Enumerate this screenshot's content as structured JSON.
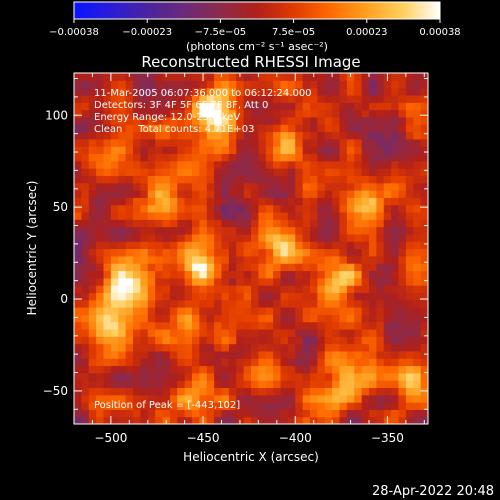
{
  "colorbar": {
    "ticks": [
      "-0.00038",
      "-0.00023",
      "-7.5e-05",
      "7.5e-05",
      "0.00023",
      "0.00038"
    ],
    "unit_label": "(photons cm⁻² s⁻¹ asec⁻²)",
    "range": [
      -0.00038,
      0.00038
    ],
    "stops": [
      "#0a14ff",
      "#2a1cd8",
      "#4a239f",
      "#6b2a7a",
      "#8d2a4a",
      "#b0201a",
      "#e03a00",
      "#ff6a00",
      "#ffa020",
      "#ffd060",
      "#ffffff"
    ]
  },
  "chart_data": {
    "type": "heatmap",
    "title": "Reconstructed RHESSI Image",
    "xlabel": "Heliocentric X (arcsec)",
    "ylabel": "Heliocentric Y (arcsec)",
    "xlim": [
      -520,
      -328
    ],
    "ylim": [
      -68,
      123
    ],
    "x_ticks": [
      -500,
      -450,
      -400,
      -350
    ],
    "x_tick_labels": [
      "-500",
      "-450",
      "-400",
      "-350"
    ],
    "y_ticks": [
      -50,
      0,
      50,
      100
    ],
    "y_tick_labels": [
      "-50",
      "0",
      "50",
      "100"
    ],
    "value_range": [
      -0.00038,
      0.00038
    ],
    "annotations": [
      "11-Mar-2005 06:07:36.000 to 06:12:24.000",
      "Detectors: 3F 4F 5F 6F 7F 8F, Att 0",
      "Energy Range: 12.0-25.0 keV",
      "Clean     Total counts: 4.71E+03"
    ],
    "peak_label": "Position of Peak = [-443,102]",
    "peak_position": [
      -443,
      102
    ],
    "sources": [
      {
        "x": -443,
        "y": 102,
        "intensity": 0.00038
      },
      {
        "x": -452,
        "y": 20,
        "intensity": 0.00034
      },
      {
        "x": -502,
        "y": -12,
        "intensity": 0.0003
      },
      {
        "x": -493,
        "y": 10,
        "intensity": 0.00026
      },
      {
        "x": -410,
        "y": 28,
        "intensity": 0.00024
      },
      {
        "x": -377,
        "y": 10,
        "intensity": 0.00026
      },
      {
        "x": -373,
        "y": -45,
        "intensity": 0.00028
      },
      {
        "x": -340,
        "y": -40,
        "intensity": 0.00022
      },
      {
        "x": -365,
        "y": 53,
        "intensity": 0.00024
      },
      {
        "x": -408,
        "y": 80,
        "intensity": 0.00018
      },
      {
        "x": -505,
        "y": 75,
        "intensity": 0.00016
      },
      {
        "x": -455,
        "y": -15,
        "intensity": 0.00022
      },
      {
        "x": -420,
        "y": -40,
        "intensity": 0.00018
      },
      {
        "x": -470,
        "y": 55,
        "intensity": 0.00015
      },
      {
        "x": -455,
        "y": -55,
        "intensity": 0.00016
      },
      {
        "x": -335,
        "y": 15,
        "intensity": 0.00014
      }
    ]
  },
  "footer": {
    "timestamp": "28-Apr-2022 20:48"
  }
}
